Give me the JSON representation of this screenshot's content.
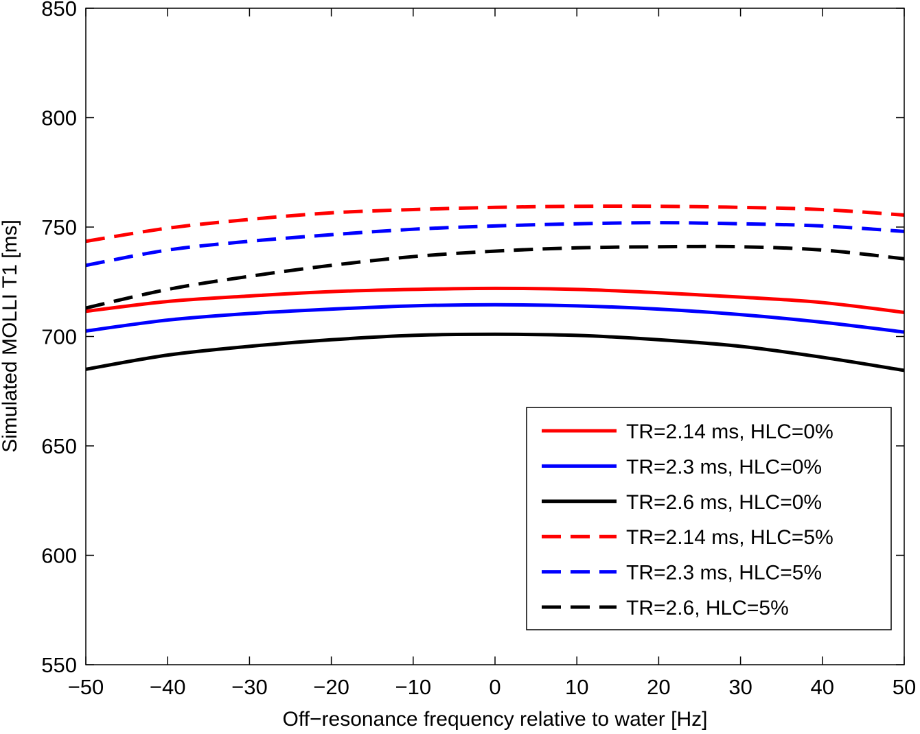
{
  "chart_data": {
    "type": "line",
    "title": "",
    "xlabel": "Off−resonance frequency relative to water [Hz]",
    "ylabel": "Simulated MOLLI T1 [ms]",
    "xlim": [
      -50,
      50
    ],
    "ylim": [
      550,
      850
    ],
    "grid": false,
    "legend_position": "lower-right",
    "x_ticks": [
      -50,
      -40,
      -30,
      -20,
      -10,
      0,
      10,
      20,
      30,
      40,
      50
    ],
    "x_tick_labels": [
      "−50",
      "−40",
      "−30",
      "−20",
      "−10",
      "0",
      "10",
      "20",
      "30",
      "40",
      "50"
    ],
    "y_ticks": [
      550,
      600,
      650,
      700,
      750,
      800,
      850
    ],
    "y_tick_labels": [
      "550",
      "600",
      "650",
      "700",
      "750",
      "800",
      "850"
    ],
    "x": [
      -50,
      -40,
      -30,
      -20,
      -10,
      0,
      10,
      20,
      30,
      40,
      50
    ],
    "series": [
      {
        "name": "TR=2.14 ms, HLC=0%",
        "color": "#ff0000",
        "dash": "solid",
        "values": [
          711.5,
          716,
          718.5,
          720.5,
          721.5,
          722,
          721.5,
          720,
          718,
          715.5,
          711
        ]
      },
      {
        "name": "TR=2.3 ms, HLC=0%",
        "color": "#0000ff",
        "dash": "solid",
        "values": [
          702.5,
          707.5,
          710.5,
          712.5,
          714,
          714.5,
          714,
          712.5,
          710,
          706.5,
          702
        ]
      },
      {
        "name": "TR=2.6 ms, HLC=0%",
        "color": "#000000",
        "dash": "solid",
        "values": [
          685,
          691.5,
          695.5,
          698.5,
          700.5,
          701,
          700.5,
          698.5,
          695.5,
          690.5,
          684.5
        ]
      },
      {
        "name": "TR=2.14 ms, HLC=5%",
        "color": "#ff0000",
        "dash": "dashed",
        "values": [
          743.5,
          749.5,
          753.5,
          756.5,
          758,
          759,
          759.5,
          759.5,
          759,
          758,
          755.5
        ]
      },
      {
        "name": "TR=2.3 ms, HLC=5%",
        "color": "#0000ff",
        "dash": "dashed",
        "values": [
          732.5,
          739.5,
          743.5,
          746.5,
          749,
          750.5,
          751.5,
          752,
          751.5,
          750.5,
          748
        ]
      },
      {
        "name": "TR=2.6, HLC=5%",
        "color": "#000000",
        "dash": "dashed",
        "values": [
          713,
          721.5,
          727.5,
          732.5,
          736.5,
          739,
          740.5,
          741,
          741,
          739.5,
          735.5
        ]
      }
    ]
  }
}
